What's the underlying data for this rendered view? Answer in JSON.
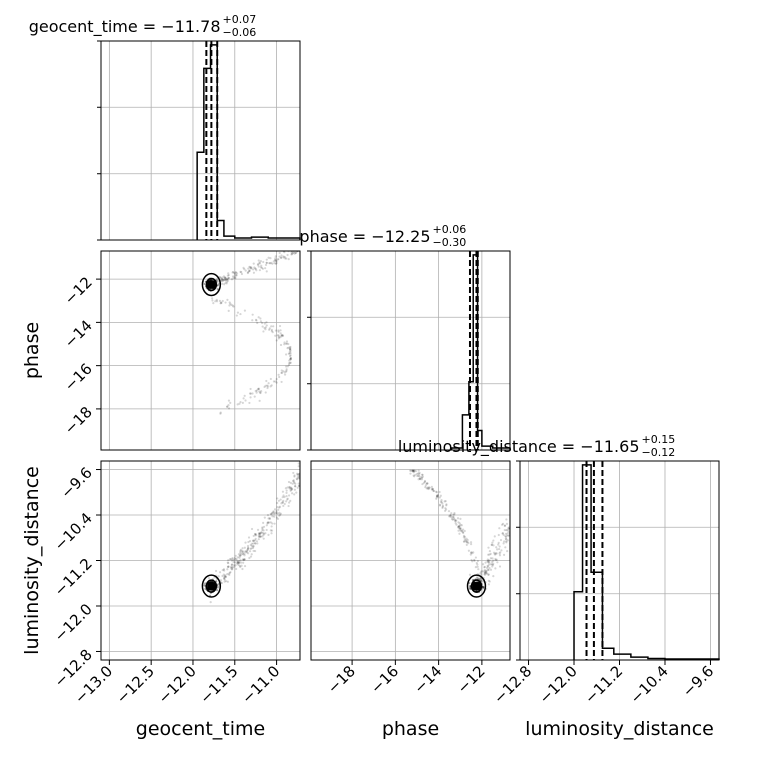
{
  "chart_data": {
    "type": "corner",
    "parameters": [
      {
        "name": "geocent_time",
        "xlabel": "geocent_time",
        "title_main": "geocent_time = −11.78",
        "title_sup": "+0.07",
        "title_sub": "−0.06",
        "range": [
          -13.1,
          -10.72
        ],
        "ticks": [
          -13.0,
          -12.5,
          -12.0,
          -11.5,
          -11.0
        ],
        "tick_labels": [
          "−13.0",
          "−12.5",
          "−12.0",
          "−11.5",
          "−11.0"
        ],
        "quantiles": [
          -11.84,
          -11.78,
          -11.71
        ],
        "hist_edges": [
          -11.95,
          -11.87,
          -11.79,
          -11.71,
          -11.63,
          -11.5,
          -11.3,
          -11.1,
          -10.9,
          -10.72
        ],
        "hist_values": [
          0.45,
          0.88,
          1.0,
          0.1,
          0.02,
          0.01,
          0.015,
          0.01,
          0.01
        ]
      },
      {
        "name": "phase",
        "xlabel": "phase",
        "ylabel": "phase",
        "title_main": "phase = −12.25",
        "title_sup": "+0.06",
        "title_sub": "−0.30",
        "range": [
          -19.9,
          -10.7
        ],
        "ticks": [
          -18,
          -16,
          -14,
          -12
        ],
        "tick_labels": [
          "−18",
          "−16",
          "−14",
          "−12"
        ],
        "quantiles": [
          -12.55,
          -12.25,
          -12.19
        ],
        "hist_edges": [
          -13.4,
          -12.9,
          -12.6,
          -12.4,
          -12.2,
          -12.0,
          -11.5,
          -11.0,
          -10.7
        ],
        "hist_values": [
          0.01,
          0.18,
          0.35,
          1.0,
          0.1,
          0.02,
          0.01,
          0.01
        ]
      },
      {
        "name": "luminosity_distance",
        "xlabel": "luminosity_distance",
        "ylabel": "luminosity_distance",
        "title_main": "luminosity_distance = −11.65",
        "title_sup": "+0.15",
        "title_sub": "−0.12",
        "range": [
          -12.95,
          -9.45
        ],
        "ticks": [
          -12.8,
          -12.0,
          -11.2,
          -10.4,
          -9.6
        ],
        "tick_labels": [
          "−12.8",
          "−12.0",
          "−11.2",
          "−10.4",
          "−9.6"
        ],
        "quantiles": [
          -11.78,
          -11.65,
          -11.5
        ],
        "hist_edges": [
          -12.0,
          -11.85,
          -11.7,
          -11.5,
          -11.3,
          -11.0,
          -10.7,
          -10.4,
          -9.45
        ],
        "hist_values": [
          0.35,
          1.0,
          0.45,
          0.06,
          0.03,
          0.015,
          0.008,
          0.005
        ]
      }
    ],
    "grid": true
  }
}
